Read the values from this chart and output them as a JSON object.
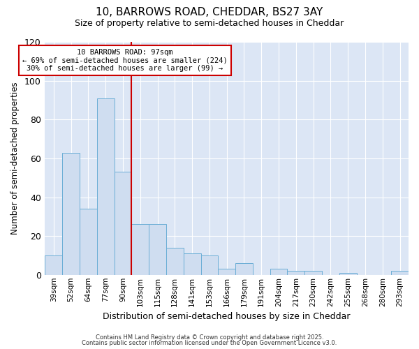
{
  "title_line1": "10, BARROWS ROAD, CHEDDAR, BS27 3AY",
  "title_line2": "Size of property relative to semi-detached houses in Cheddar",
  "xlabel": "Distribution of semi-detached houses by size in Cheddar",
  "ylabel": "Number of semi-detached properties",
  "categories": [
    "39sqm",
    "52sqm",
    "64sqm",
    "77sqm",
    "90sqm",
    "103sqm",
    "115sqm",
    "128sqm",
    "141sqm",
    "153sqm",
    "166sqm",
    "179sqm",
    "191sqm",
    "204sqm",
    "217sqm",
    "230sqm",
    "242sqm",
    "255sqm",
    "268sqm",
    "280sqm",
    "293sqm"
  ],
  "values": [
    10,
    63,
    34,
    91,
    53,
    26,
    26,
    14,
    11,
    10,
    3,
    6,
    0,
    3,
    2,
    2,
    0,
    1,
    0,
    0,
    2
  ],
  "bar_color": "#cfddf0",
  "bar_edge_color": "#6baed6",
  "red_line_x": 4.5,
  "annotation_line1": "10 BARROWS ROAD: 97sqm",
  "annotation_line2": "← 69% of semi-detached houses are smaller (224)",
  "annotation_line3": "30% of semi-detached houses are larger (99) →",
  "annotation_box_color": "#ffffff",
  "annotation_box_edge": "#cc0000",
  "red_line_color": "#cc0000",
  "ylim": [
    0,
    120
  ],
  "yticks": [
    0,
    20,
    40,
    60,
    80,
    100,
    120
  ],
  "bg_color": "#dce6f5",
  "grid_color": "#ffffff",
  "fig_bg_color": "#ffffff",
  "footer_line1": "Contains HM Land Registry data © Crown copyright and database right 2025.",
  "footer_line2": "Contains public sector information licensed under the Open Government Licence v3.0."
}
